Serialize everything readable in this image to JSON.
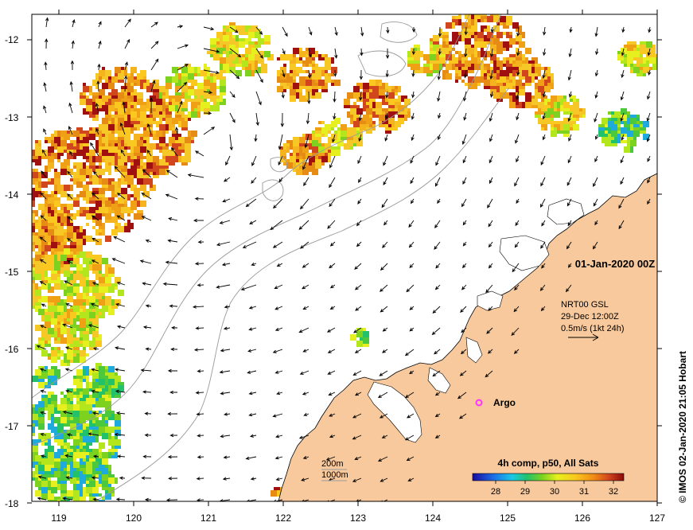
{
  "map": {
    "title_date": "01-Jan-2020 00Z",
    "x_ticks": [
      "119",
      "120",
      "121",
      "122",
      "123",
      "124",
      "125",
      "126",
      "127"
    ],
    "y_ticks": [
      "-12",
      "-13",
      "-14",
      "-15",
      "-16",
      "-17",
      "-18"
    ],
    "current_info": {
      "line1": "NRT00 GSL",
      "line2": "29-Dec 12:00Z",
      "line3": "0.5m/s (1kt 24h)"
    },
    "argo_label": "Argo",
    "bathymetry": {
      "label_200": "200m",
      "label_1000": "1000m"
    },
    "colorbar": {
      "title": "4h comp, p50, All Sats",
      "ticks": [
        "28",
        "29",
        "30",
        "31",
        "32"
      ]
    },
    "credit": "© IMOS 02-Jan-2020 21:05 Hobart",
    "colors": {
      "land": "#f8c99c",
      "argo": "#ff33ff",
      "contour": "#9a9a9a"
    }
  }
}
